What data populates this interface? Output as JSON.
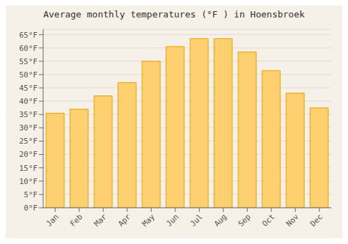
{
  "chart_data": {
    "type": "bar",
    "title": "Average monthly temperatures (°F ) in Hoensbroek",
    "categories": [
      "Jan",
      "Feb",
      "Mar",
      "Apr",
      "May",
      "Jun",
      "Jul",
      "Aug",
      "Sep",
      "Oct",
      "Nov",
      "Dec"
    ],
    "values": [
      35.5,
      37,
      42,
      47,
      55,
      60.5,
      63.5,
      63.5,
      58.5,
      51.5,
      43,
      37.5
    ],
    "color": "#FFD070",
    "ylim": [
      0,
      67
    ],
    "yticks": [
      {
        "value": 0,
        "label": "0°F"
      },
      {
        "value": 5,
        "label": "5°F"
      },
      {
        "value": 10,
        "label": "10°F"
      },
      {
        "value": 15,
        "label": "15°F"
      },
      {
        "value": 20,
        "label": "20°F"
      },
      {
        "value": 25,
        "label": "25°F"
      },
      {
        "value": 30,
        "label": "30°F"
      },
      {
        "value": 35,
        "label": "35°F"
      },
      {
        "value": 40,
        "label": "40°F"
      },
      {
        "value": 45,
        "label": "45°F"
      },
      {
        "value": 50,
        "label": "50°F"
      },
      {
        "value": 55,
        "label": "55°F"
      },
      {
        "value": 60,
        "label": "60°F"
      },
      {
        "value": 65,
        "label": "65°F"
      }
    ],
    "grid": true
  }
}
